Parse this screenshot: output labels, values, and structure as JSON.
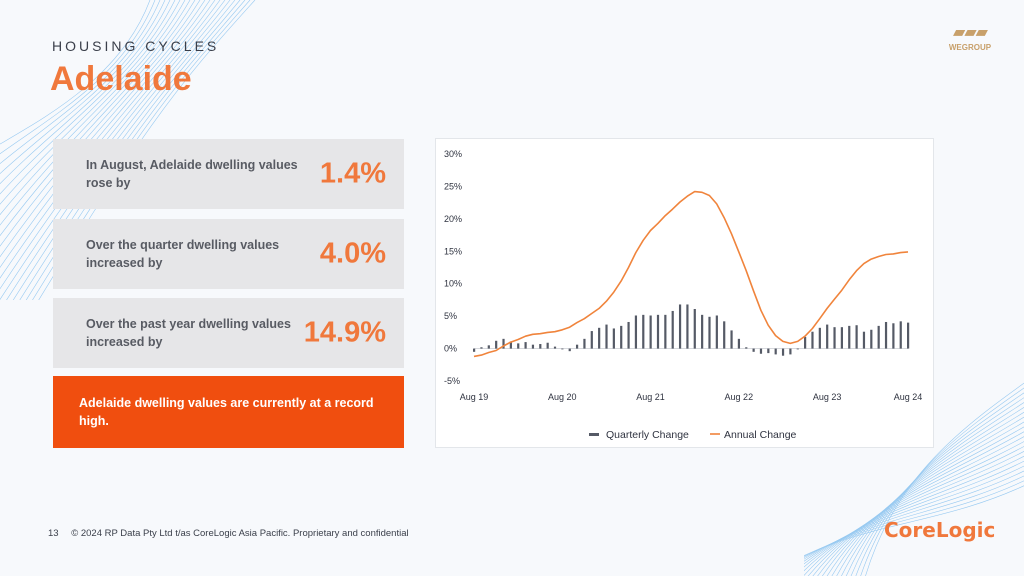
{
  "header": {
    "kicker": "HOUSING CYCLES",
    "title": "Adelaide",
    "logo_word": "WEGROUP"
  },
  "stats": [
    {
      "text": "In August, Adelaide dwelling values rose by",
      "value": "1.4%"
    },
    {
      "text": "Over the quarter dwelling values increased by",
      "value": "4.0%"
    },
    {
      "text": "Over the past year dwelling values increased by",
      "value": "14.9%"
    }
  ],
  "callout": {
    "text": "Adelaide dwelling values are currently at a record high."
  },
  "footer": {
    "page": "13",
    "copyright": "© 2024 RP Data Pty Ltd t/as CoreLogic Asia Pacific. Proprietary and confidential",
    "brand": "CoreLogic"
  },
  "colors": {
    "accent": "#f0783c",
    "callout_bg": "#f04e0f",
    "bar": "#555a66",
    "line": "#f0843c"
  },
  "chart_data": {
    "type": "bar+line",
    "ylim": [
      -5,
      30
    ],
    "y_ticks": [
      "30%",
      "25%",
      "20%",
      "15%",
      "10%",
      "5%",
      "0%",
      "-5%"
    ],
    "y_tick_values": [
      30,
      25,
      20,
      15,
      10,
      5,
      0,
      -5
    ],
    "x_tick_labels": [
      "Aug 19",
      "Aug 20",
      "Aug 21",
      "Aug 22",
      "Aug 23",
      "Aug 24"
    ],
    "legend_position": "bottom",
    "series": [
      {
        "name": "Quarterly Change",
        "type": "bar",
        "values": [
          -0.5,
          0.2,
          0.5,
          1.2,
          1.5,
          1.1,
          0.8,
          1.0,
          0.6,
          0.7,
          0.9,
          0.3,
          0.0,
          -0.4,
          0.6,
          1.5,
          2.7,
          3.2,
          3.7,
          3.1,
          3.5,
          4.1,
          5.1,
          5.2,
          5.1,
          5.2,
          5.2,
          5.8,
          6.8,
          6.8,
          6.1,
          5.2,
          4.9,
          5.1,
          4.2,
          2.8,
          1.5,
          0.2,
          -0.5,
          -0.8,
          -0.7,
          -0.9,
          -1.1,
          -0.9,
          0.0,
          1.8,
          2.6,
          3.2,
          3.7,
          3.3,
          3.3,
          3.5,
          3.6,
          2.6,
          2.9,
          3.5,
          4.1,
          3.9,
          4.2,
          4.0
        ]
      },
      {
        "name": "Annual Change",
        "type": "line",
        "values": [
          -1.2,
          -1.0,
          -0.6,
          -0.3,
          0.4,
          1.0,
          1.4,
          1.9,
          2.2,
          2.3,
          2.5,
          2.6,
          2.9,
          3.3,
          4.0,
          4.6,
          5.4,
          6.2,
          7.3,
          8.7,
          10.4,
          12.5,
          14.8,
          16.7,
          18.2,
          19.3,
          20.5,
          21.5,
          22.6,
          23.5,
          24.2,
          24.1,
          23.6,
          22.3,
          20.2,
          17.7,
          14.9,
          12.0,
          8.9,
          5.9,
          3.6,
          2.0,
          1.1,
          0.8,
          1.1,
          1.9,
          3.1,
          4.6,
          6.2,
          7.6,
          9.0,
          10.6,
          12.0,
          13.1,
          13.8,
          14.2,
          14.5,
          14.6,
          14.8,
          14.9
        ]
      }
    ]
  }
}
